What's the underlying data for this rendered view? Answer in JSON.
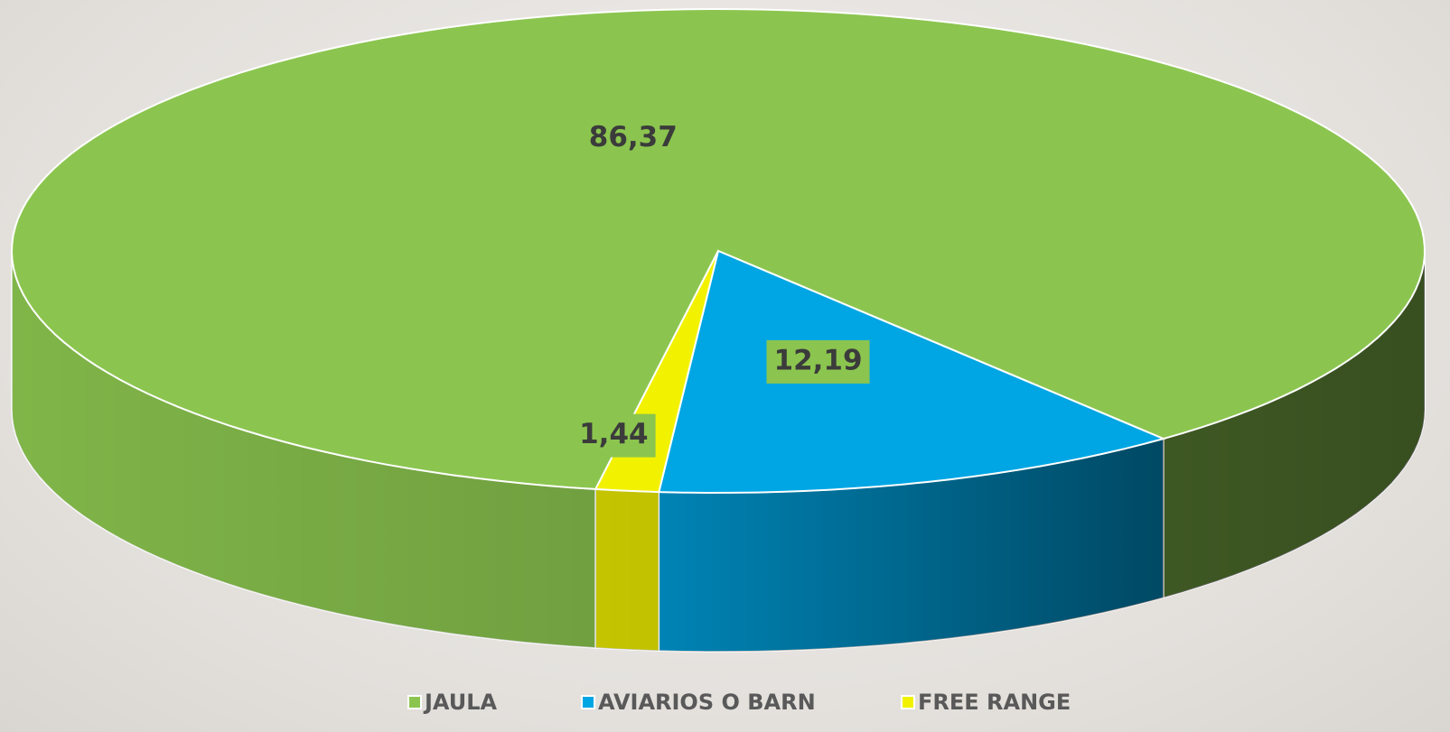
{
  "chart_data": {
    "type": "pie3d",
    "categories": [
      "JAULA",
      "AVIARIOS O BARN",
      "FREE RANGE"
    ],
    "values": [
      86.37,
      12.19,
      1.44
    ],
    "value_labels": [
      "86,37",
      "12,19",
      "1,44"
    ],
    "colors": [
      "#8bc54f",
      "#00a6e4",
      "#f2f200"
    ],
    "legend": "bottom"
  }
}
